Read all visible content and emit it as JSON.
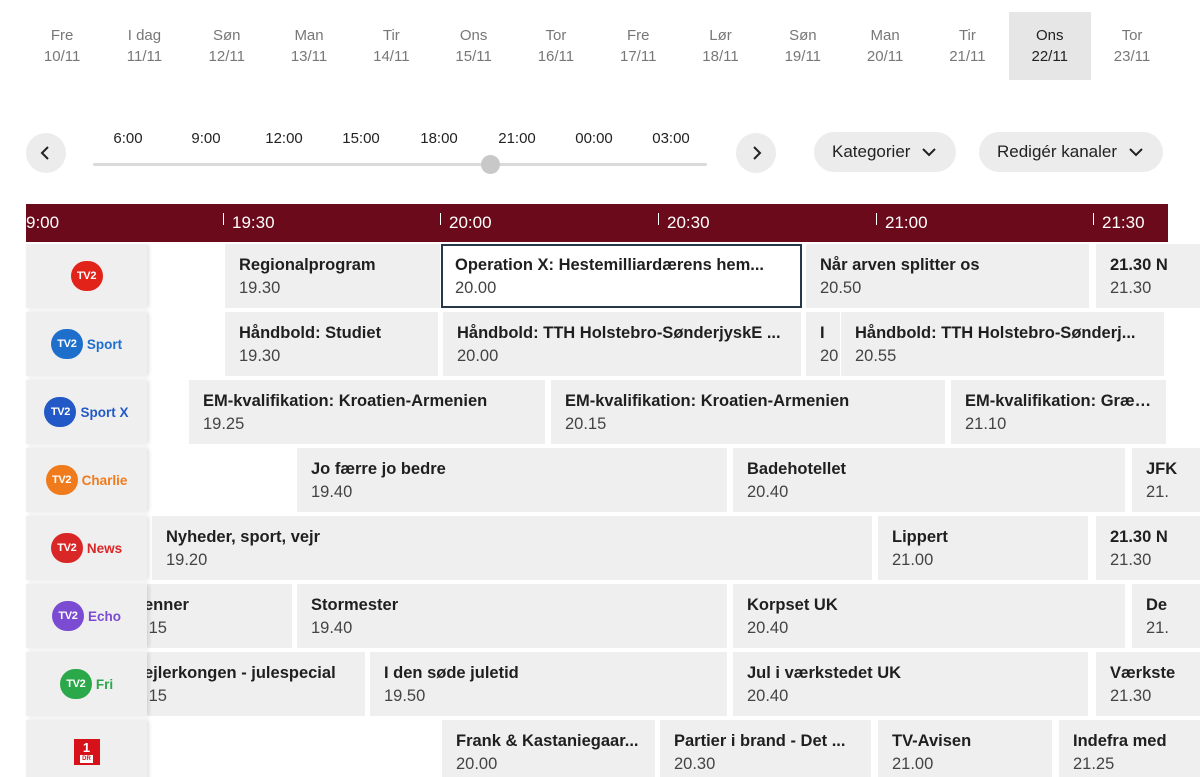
{
  "days": [
    {
      "name": "Fre",
      "date": "10/11"
    },
    {
      "name": "I dag",
      "date": "11/11"
    },
    {
      "name": "Søn",
      "date": "12/11"
    },
    {
      "name": "Man",
      "date": "13/11"
    },
    {
      "name": "Tir",
      "date": "14/11"
    },
    {
      "name": "Ons",
      "date": "15/11"
    },
    {
      "name": "Tor",
      "date": "16/11"
    },
    {
      "name": "Fre",
      "date": "17/11"
    },
    {
      "name": "Lør",
      "date": "18/11"
    },
    {
      "name": "Søn",
      "date": "19/11"
    },
    {
      "name": "Man",
      "date": "20/11"
    },
    {
      "name": "Tir",
      "date": "21/11"
    },
    {
      "name": "Ons",
      "date": "22/11"
    },
    {
      "name": "Tor",
      "date": "23/11"
    }
  ],
  "selected_day_index": 12,
  "slider": {
    "ticks": [
      "6:00",
      "9:00",
      "12:00",
      "15:00",
      "18:00",
      "21:00",
      "00:00",
      "03:00"
    ],
    "position_label": "21:00"
  },
  "buttons": {
    "prev_icon": "chevron-left-icon",
    "next_icon": "chevron-right-icon",
    "categories_label": "Kategorier",
    "edit_channels_label": "Redigér kanaler"
  },
  "timeline": [
    "9:00",
    "19:30",
    "20:00",
    "20:30",
    "21:00",
    "21:30"
  ],
  "colors": {
    "timeline_bg": "#6b0a1a",
    "tv2_red": "#e2231a",
    "tv2_sport_blue": "#1e6fcc",
    "tv2_sportx_blue": "#2259c7",
    "tv2_charlie_orange": "#f07b1d",
    "tv2_news_red": "#d92727",
    "tv2_echo_purple": "#7b4bd1",
    "tv2_fri_green": "#2aa84a",
    "dr_red": "#d6111a"
  },
  "channels": [
    {
      "id": "tv2",
      "badge": "TV2",
      "label": "",
      "color": "#e2231a",
      "programs": [
        {
          "title": "Regionalprogram",
          "time": "19.30"
        },
        {
          "title": "Operation X: Hestemilliardærens hem...",
          "time": "20.00",
          "selected": true
        },
        {
          "title": "Når arven splitter os",
          "time": "20.50"
        },
        {
          "title": "21.30 N",
          "time": "21.30"
        }
      ]
    },
    {
      "id": "tv2-sport",
      "badge": "TV2",
      "label": "Sport",
      "color": "#1e6fcc",
      "programs": [
        {
          "title": "Håndbold: Studiet",
          "time": "19.30"
        },
        {
          "title": "Håndbold: TTH Holstebro-SønderjyskE ...",
          "time": "20.00"
        },
        {
          "title": "I",
          "time": "20"
        },
        {
          "title": "Håndbold: TTH Holstebro-Sønderj...",
          "time": "20.55"
        }
      ]
    },
    {
      "id": "tv2-sport-x",
      "badge": "TV2",
      "label": "Sport X",
      "color": "#2259c7",
      "programs": [
        {
          "title": "EM-kvalifikation: Kroatien-Armenien",
          "time": "19.25"
        },
        {
          "title": "EM-kvalifikation: Kroatien-Armenien",
          "time": "20.15"
        },
        {
          "title": "EM-kvalifikation: Græken",
          "time": "21.10"
        }
      ]
    },
    {
      "id": "tv2-charlie",
      "badge": "TV2",
      "label": "Charlie",
      "color": "#f07b1d",
      "programs": [
        {
          "title": "Jo færre jo bedre",
          "time": "19.40"
        },
        {
          "title": "Badehotellet",
          "time": "20.40"
        },
        {
          "title": "JFK",
          "time": "21."
        }
      ]
    },
    {
      "id": "tv2-news",
      "badge": "TV2",
      "label": "News",
      "color": "#d92727",
      "programs": [
        {
          "title": "Nyheder, sport, vejr",
          "time": "19.20"
        },
        {
          "title": "Lippert",
          "time": "21.00"
        },
        {
          "title": "21.30 N",
          "time": "21.30"
        }
      ]
    },
    {
      "id": "tv2-echo",
      "badge": "TV2",
      "label": "Echo",
      "color": "#7b4bd1",
      "programs": [
        {
          "title": "enner",
          "time": ".15"
        },
        {
          "title": "Stormester",
          "time": "19.40"
        },
        {
          "title": "Korpset UK",
          "time": "20.40"
        },
        {
          "title": "De",
          "time": "21."
        }
      ]
    },
    {
      "id": "tv2-fri",
      "badge": "TV2",
      "label": "Fri",
      "color": "#2aa84a",
      "programs": [
        {
          "title": "ejlerkongen - julespecial",
          "time": ".15"
        },
        {
          "title": "I den søde juletid",
          "time": "19.50"
        },
        {
          "title": "Jul i værkstedet UK",
          "time": "20.40"
        },
        {
          "title": "Værkste",
          "time": "21.30"
        }
      ]
    },
    {
      "id": "dr1",
      "badge": "1",
      "label": "DR",
      "color": "#d6111a",
      "programs": [
        {
          "title": "Frank & Kastaniegaar...",
          "time": "20.00"
        },
        {
          "title": "Partier i brand - Det ...",
          "time": "20.30"
        },
        {
          "title": "TV-Avisen",
          "time": "21.00"
        },
        {
          "title": "Indefra med",
          "time": "21.25"
        }
      ]
    }
  ]
}
